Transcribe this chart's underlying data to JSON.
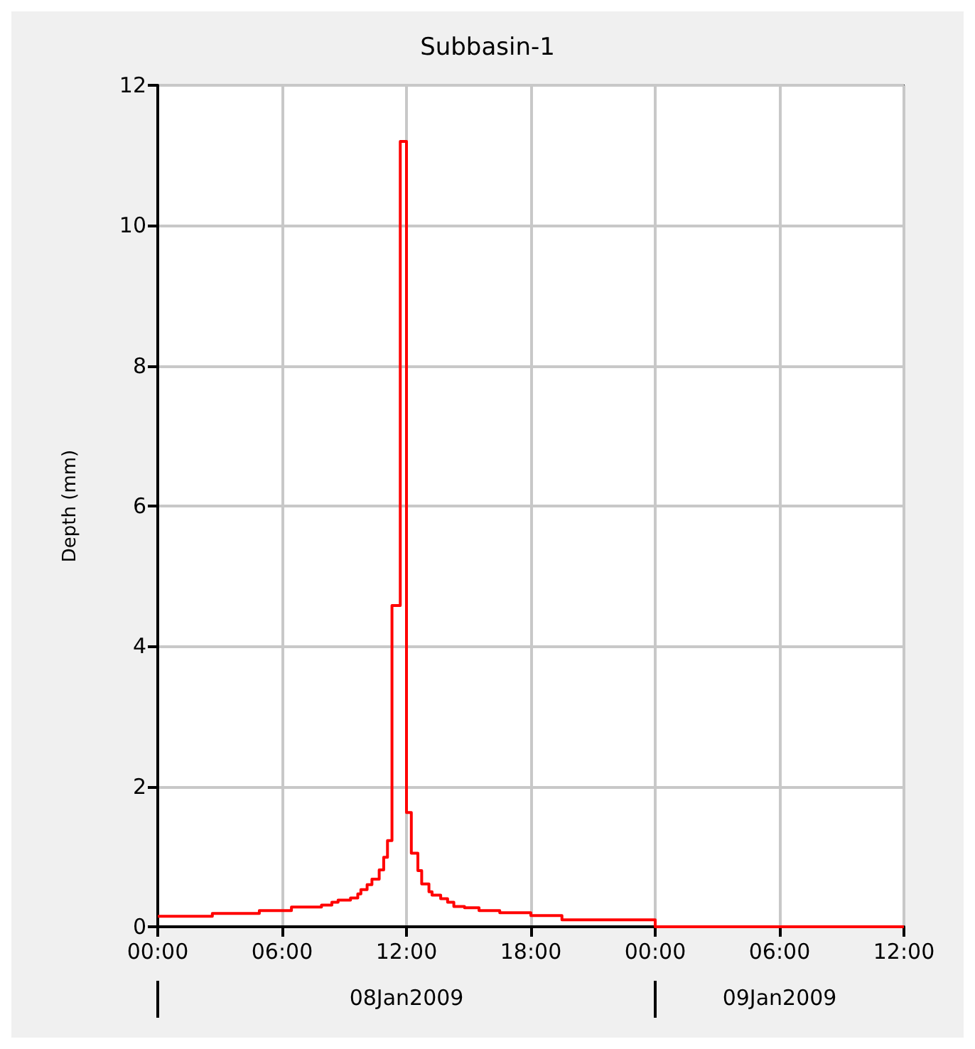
{
  "chart_data": {
    "type": "step",
    "title": "Subbasin-1",
    "ylabel": "Depth (mm)",
    "x": [
      "2009-01-08T00:00",
      "2009-01-08T02:38",
      "2009-01-08T04:54",
      "2009-01-08T06:27",
      "2009-01-08T07:54",
      "2009-01-08T08:24",
      "2009-01-08T08:42",
      "2009-01-08T09:18",
      "2009-01-08T09:39",
      "2009-01-08T09:48",
      "2009-01-08T10:06",
      "2009-01-08T10:20",
      "2009-01-08T10:41",
      "2009-01-08T10:54",
      "2009-01-08T11:05",
      "2009-01-08T11:18",
      "2009-01-08T11:42",
      "2009-01-08T12:00",
      "2009-01-08T12:14",
      "2009-01-08T12:33",
      "2009-01-08T12:44",
      "2009-01-08T13:05",
      "2009-01-08T13:14",
      "2009-01-08T13:39",
      "2009-01-08T13:59",
      "2009-01-08T14:17",
      "2009-01-08T14:48",
      "2009-01-08T15:30",
      "2009-01-08T16:30",
      "2009-01-08T18:00",
      "2009-01-08T19:30",
      "2009-01-09T00:00",
      "2009-01-09T12:00"
    ],
    "series": [
      {
        "color": "#ff0000",
        "values": [
          0.15,
          0.19,
          0.23,
          0.28,
          0.31,
          0.35,
          0.38,
          0.41,
          0.47,
          0.53,
          0.6,
          0.68,
          0.81,
          0.99,
          1.23,
          4.58,
          11.2,
          1.63,
          1.05,
          0.8,
          0.61,
          0.5,
          0.45,
          0.4,
          0.35,
          0.29,
          0.27,
          0.23,
          0.2,
          0.16,
          0.1,
          0,
          0
        ]
      }
    ],
    "xlim": [
      "2009-01-08T00:00",
      "2009-01-09T12:00"
    ],
    "xticks": [
      {
        "value": "2009-01-08T00:00",
        "label": "00:00"
      },
      {
        "value": "2009-01-08T06:00",
        "label": "06:00"
      },
      {
        "value": "2009-01-08T12:00",
        "label": "12:00"
      },
      {
        "value": "2009-01-08T18:00",
        "label": "18:00"
      },
      {
        "value": "2009-01-09T00:00",
        "label": "00:00"
      },
      {
        "value": "2009-01-09T06:00",
        "label": "06:00"
      },
      {
        "value": "2009-01-09T12:00",
        "label": "12:00"
      }
    ],
    "ylim": [
      0,
      12
    ],
    "yticks": [
      0,
      2,
      4,
      6,
      8,
      10,
      12
    ],
    "annotations": [
      "08Jan2009",
      "09Jan2009"
    ],
    "grid": true,
    "marker": "none",
    "line_style": "solid"
  }
}
